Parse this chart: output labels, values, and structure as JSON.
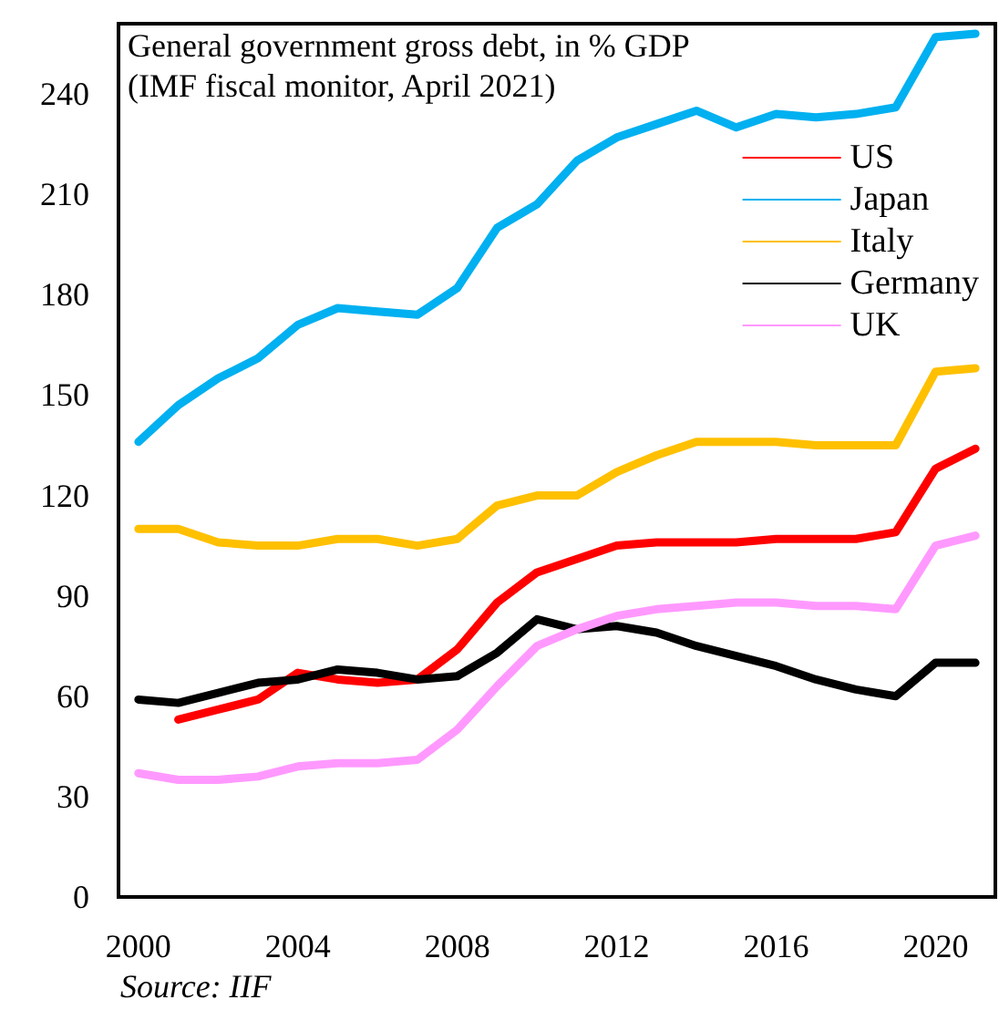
{
  "chart_data": {
    "type": "line",
    "title": "General government gross debt, in % GDP",
    "subtitle": "(IMF fiscal monitor, April 2021)",
    "annotations": [
      "Source: IIF"
    ],
    "x": [
      2000,
      2001,
      2002,
      2003,
      2004,
      2005,
      2006,
      2007,
      2008,
      2009,
      2010,
      2011,
      2012,
      2013,
      2014,
      2015,
      2016,
      2017,
      2018,
      2019,
      2020,
      2021
    ],
    "series": [
      {
        "name": "US",
        "color": "#ff0000",
        "values": [
          null,
          53,
          56,
          59,
          67,
          65,
          64,
          65,
          74,
          88,
          97,
          101,
          105,
          106,
          106,
          106,
          107,
          107,
          107,
          109,
          128,
          134
        ]
      },
      {
        "name": "Japan",
        "color": "#00b0f0",
        "values": [
          136,
          147,
          155,
          161,
          171,
          176,
          175,
          174,
          182,
          200,
          207,
          220,
          227,
          231,
          235,
          230,
          234,
          233,
          234,
          236,
          257,
          258
        ]
      },
      {
        "name": "Italy",
        "color": "#ffc000",
        "values": [
          110,
          110,
          106,
          105,
          105,
          107,
          107,
          105,
          107,
          117,
          120,
          120,
          127,
          132,
          136,
          136,
          136,
          135,
          135,
          135,
          157,
          158
        ]
      },
      {
        "name": "Germany",
        "color": "#000000",
        "values": [
          59,
          58,
          61,
          64,
          65,
          68,
          67,
          65,
          66,
          73,
          83,
          80,
          81,
          79,
          75,
          72,
          69,
          65,
          62,
          60,
          70,
          70
        ]
      },
      {
        "name": "UK",
        "color": "#ff99ff",
        "values": [
          37,
          35,
          35,
          36,
          39,
          40,
          40,
          41,
          50,
          63,
          75,
          80,
          84,
          86,
          87,
          88,
          88,
          87,
          87,
          86,
          105,
          108
        ]
      }
    ],
    "xlim": [
      1999.5,
      2021.5
    ],
    "xticks": [
      2000,
      2004,
      2008,
      2012,
      2016,
      2020
    ],
    "ylim": [
      0,
      261
    ],
    "yticks": [
      0,
      30,
      60,
      90,
      120,
      150,
      180,
      210,
      240
    ],
    "grid": false,
    "legend": "top right",
    "marker": "none",
    "line_style": "solid"
  }
}
